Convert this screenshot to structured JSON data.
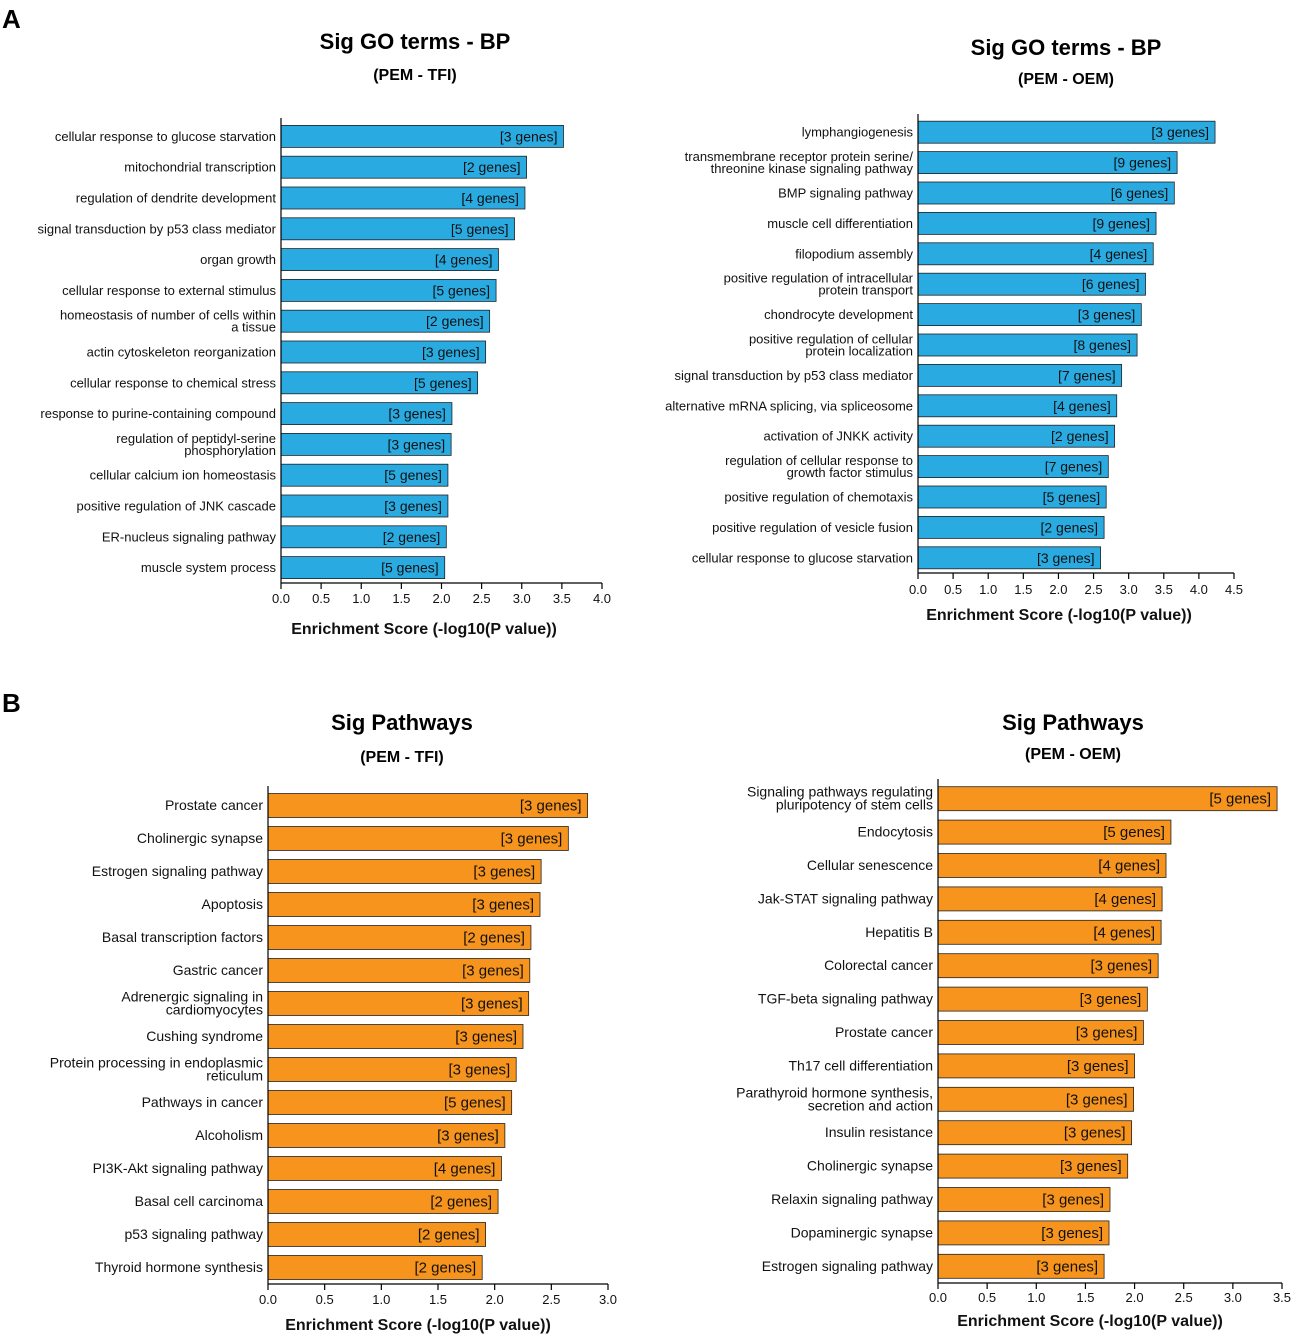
{
  "panel_labels": {
    "a": "A",
    "b": "B"
  },
  "chart_data": [
    {
      "id": "go-tfi",
      "type": "bar",
      "orientation": "horizontal",
      "title": "Sig GO terms - BP",
      "subtitle": "(PEM - TFI)",
      "xlabel": "Enrichment Score (-log10(P value))",
      "xlim": [
        0,
        4.0
      ],
      "xticks": [
        "0.0",
        "0.5",
        "1.0",
        "1.5",
        "2.0",
        "2.5",
        "3.0",
        "3.5",
        "4.0"
      ],
      "bar_color": "#29abe2",
      "categories": [
        "cellular response to glucose starvation",
        "mitochondrial transcription",
        "regulation of dendrite development",
        "signal transduction by p53 class mediator",
        "organ growth",
        "cellular response to external stimulus",
        "homeostasis of number of cells within a tissue",
        "actin cytoskeleton reorganization",
        "cellular response to chemical stress",
        "response to purine-containing compound",
        "regulation of peptidyl-serine phosphorylation",
        "cellular calcium ion homeostasis",
        "positive regulation of JNK cascade",
        "ER-nucleus signaling pathway",
        "muscle system process"
      ],
      "category_lines": [
        [
          "cellular response to glucose starvation"
        ],
        [
          "mitochondrial transcription"
        ],
        [
          "regulation of dendrite development"
        ],
        [
          "signal transduction by p53 class mediator"
        ],
        [
          "organ growth"
        ],
        [
          "cellular response to external stimulus"
        ],
        [
          "homeostasis of number of cells within",
          "a tissue"
        ],
        [
          "actin cytoskeleton reorganization"
        ],
        [
          "cellular response to chemical stress"
        ],
        [
          "response to purine-containing compound"
        ],
        [
          "regulation of peptidyl-serine",
          "phosphorylation"
        ],
        [
          "cellular calcium ion homeostasis"
        ],
        [
          "positive regulation of JNK cascade"
        ],
        [
          "ER-nucleus signaling pathway"
        ],
        [
          "muscle system process"
        ]
      ],
      "values": [
        3.52,
        3.06,
        3.04,
        2.91,
        2.71,
        2.68,
        2.6,
        2.55,
        2.45,
        2.13,
        2.12,
        2.08,
        2.08,
        2.06,
        2.04
      ],
      "labels": [
        "[3 genes]",
        "[2 genes]",
        "[4 genes]",
        "[5 genes]",
        "[4 genes]",
        "[5 genes]",
        "[2 genes]",
        "[3 genes]",
        "[5 genes]",
        "[3 genes]",
        "[3 genes]",
        "[5 genes]",
        "[3 genes]",
        "[2 genes]",
        "[5 genes]"
      ]
    },
    {
      "id": "go-oem",
      "type": "bar",
      "orientation": "horizontal",
      "title": "Sig GO terms - BP",
      "subtitle": "(PEM - OEM)",
      "xlabel": "Enrichment Score (-log10(P value))",
      "xlim": [
        0,
        4.5
      ],
      "xticks": [
        "0.0",
        "0.5",
        "1.0",
        "1.5",
        "2.0",
        "2.5",
        "3.0",
        "3.5",
        "4.0",
        "4.5"
      ],
      "bar_color": "#29abe2",
      "categories": [
        "lymphangiogenesis",
        "transmembrane receptor protein serine/ threonine kinase signaling pathway",
        "BMP signaling pathway",
        "muscle cell differentiation",
        "filopodium assembly",
        "positive regulation of intracellular protein transport",
        "chondrocyte development",
        "positive regulation of cellular protein localization",
        "signal transduction by p53 class mediator",
        "alternative mRNA splicing, via spliceosome",
        "activation of JNKK activity",
        "regulation of cellular response to growth factor stimulus",
        "positive regulation of chemotaxis",
        "positive regulation of vesicle fusion",
        "cellular response to glucose starvation"
      ],
      "category_lines": [
        [
          "lymphangiogenesis"
        ],
        [
          "transmembrane receptor protein serine/",
          "threonine kinase signaling pathway"
        ],
        [
          "BMP signaling pathway"
        ],
        [
          "muscle cell differentiation"
        ],
        [
          "filopodium assembly"
        ],
        [
          "positive regulation of intracellular",
          "protein transport"
        ],
        [
          "chondrocyte development"
        ],
        [
          "positive regulation of cellular",
          "protein localization"
        ],
        [
          "signal transduction by p53 class mediator"
        ],
        [
          "alternative mRNA splicing, via spliceosome"
        ],
        [
          "activation of JNKK activity"
        ],
        [
          "regulation of cellular response to",
          "growth factor stimulus"
        ],
        [
          "positive regulation of chemotaxis"
        ],
        [
          "positive regulation of vesicle fusion"
        ],
        [
          "cellular response to glucose starvation"
        ]
      ],
      "values": [
        4.23,
        3.69,
        3.65,
        3.39,
        3.35,
        3.24,
        3.18,
        3.12,
        2.9,
        2.83,
        2.8,
        2.71,
        2.68,
        2.65,
        2.6
      ],
      "labels": [
        "[3 genes]",
        "[9 genes]",
        "[6 genes]",
        "[9 genes]",
        "[4 genes]",
        "[6 genes]",
        "[3 genes]",
        "[8 genes]",
        "[7 genes]",
        "[4 genes]",
        "[2 genes]",
        "[7 genes]",
        "[5 genes]",
        "[2 genes]",
        "[3 genes]"
      ]
    },
    {
      "id": "pw-tfi",
      "type": "bar",
      "orientation": "horizontal",
      "title": "Sig Pathways",
      "subtitle": "(PEM - TFI)",
      "xlabel": "Enrichment Score (-log10(P value))",
      "xlim": [
        0,
        3.0
      ],
      "xticks": [
        "0.0",
        "0.5",
        "1.0",
        "1.5",
        "2.0",
        "2.5",
        "3.0"
      ],
      "bar_color": "#f7941d",
      "categories": [
        "Prostate cancer",
        "Cholinergic synapse",
        "Estrogen signaling pathway",
        "Apoptosis",
        "Basal transcription factors",
        "Gastric cancer",
        "Adrenergic signaling in cardiomyocytes",
        "Cushing syndrome",
        "Protein processing in endoplasmic reticulum",
        "Pathways in cancer",
        "Alcoholism",
        "PI3K-Akt signaling pathway",
        "Basal cell carcinoma",
        "p53 signaling pathway",
        "Thyroid hormone synthesis"
      ],
      "category_lines": [
        [
          "Prostate cancer"
        ],
        [
          "Cholinergic synapse"
        ],
        [
          "Estrogen signaling pathway"
        ],
        [
          "Apoptosis"
        ],
        [
          "Basal transcription factors"
        ],
        [
          "Gastric cancer"
        ],
        [
          "Adrenergic signaling in",
          "cardiomyocytes"
        ],
        [
          "Cushing syndrome"
        ],
        [
          "Protein processing in endoplasmic",
          "reticulum"
        ],
        [
          "Pathways in cancer"
        ],
        [
          "Alcoholism"
        ],
        [
          "PI3K-Akt signaling pathway"
        ],
        [
          "Basal cell carcinoma"
        ],
        [
          "p53 signaling pathway"
        ],
        [
          "Thyroid hormone synthesis"
        ]
      ],
      "values": [
        2.82,
        2.65,
        2.41,
        2.4,
        2.32,
        2.31,
        2.3,
        2.25,
        2.19,
        2.15,
        2.09,
        2.06,
        2.03,
        1.92,
        1.89
      ],
      "labels": [
        "[3 genes]",
        "[3 genes]",
        "[3 genes]",
        "[3 genes]",
        "[2 genes]",
        "[3 genes]",
        "[3 genes]",
        "[3 genes]",
        "[3 genes]",
        "[5 genes]",
        "[3 genes]",
        "[4 genes]",
        "[2 genes]",
        "[2 genes]",
        "[2 genes]"
      ]
    },
    {
      "id": "pw-oem",
      "type": "bar",
      "orientation": "horizontal",
      "title": "Sig Pathways",
      "subtitle": "(PEM - OEM)",
      "xlabel": "Enrichment Score (-log10(P value))",
      "xlim": [
        0,
        3.5
      ],
      "xticks": [
        "0.0",
        "0.5",
        "1.0",
        "1.5",
        "2.0",
        "2.5",
        "3.0",
        "3.5"
      ],
      "bar_color": "#f7941d",
      "categories": [
        "Signaling pathways regulating pluripotency of stem cells",
        "Endocytosis",
        "Cellular senescence",
        "Jak-STAT signaling pathway",
        "Hepatitis B",
        "Colorectal cancer",
        "TGF-beta signaling pathway",
        "Prostate cancer",
        "Th17 cell differentiation",
        "Parathyroid hormone synthesis, secretion and action",
        "Insulin resistance",
        "Cholinergic synapse",
        "Relaxin signaling pathway",
        "Dopaminergic synapse",
        "Estrogen signaling pathway"
      ],
      "category_lines": [
        [
          "Signaling pathways regulating",
          "pluripotency of stem cells"
        ],
        [
          "Endocytosis"
        ],
        [
          "Cellular senescence"
        ],
        [
          "Jak-STAT signaling pathway"
        ],
        [
          "Hepatitis B"
        ],
        [
          "Colorectal cancer"
        ],
        [
          "TGF-beta signaling pathway"
        ],
        [
          "Prostate cancer"
        ],
        [
          "Th17 cell differentiation"
        ],
        [
          "Parathyroid hormone synthesis,",
          "secretion and action"
        ],
        [
          "Insulin resistance"
        ],
        [
          "Cholinergic synapse"
        ],
        [
          "Relaxin signaling pathway"
        ],
        [
          "Dopaminergic synapse"
        ],
        [
          "Estrogen signaling pathway"
        ]
      ],
      "values": [
        3.45,
        2.37,
        2.32,
        2.28,
        2.27,
        2.24,
        2.13,
        2.09,
        2.0,
        1.99,
        1.97,
        1.93,
        1.75,
        1.74,
        1.69
      ],
      "labels": [
        "[5 genes]",
        "[5 genes]",
        "[4 genes]",
        "[4 genes]",
        "[4 genes]",
        "[3 genes]",
        "[3 genes]",
        "[3 genes]",
        "[3 genes]",
        "[3 genes]",
        "[3 genes]",
        "[3 genes]",
        "[3 genes]",
        "[3 genes]",
        "[3 genes]"
      ]
    }
  ]
}
